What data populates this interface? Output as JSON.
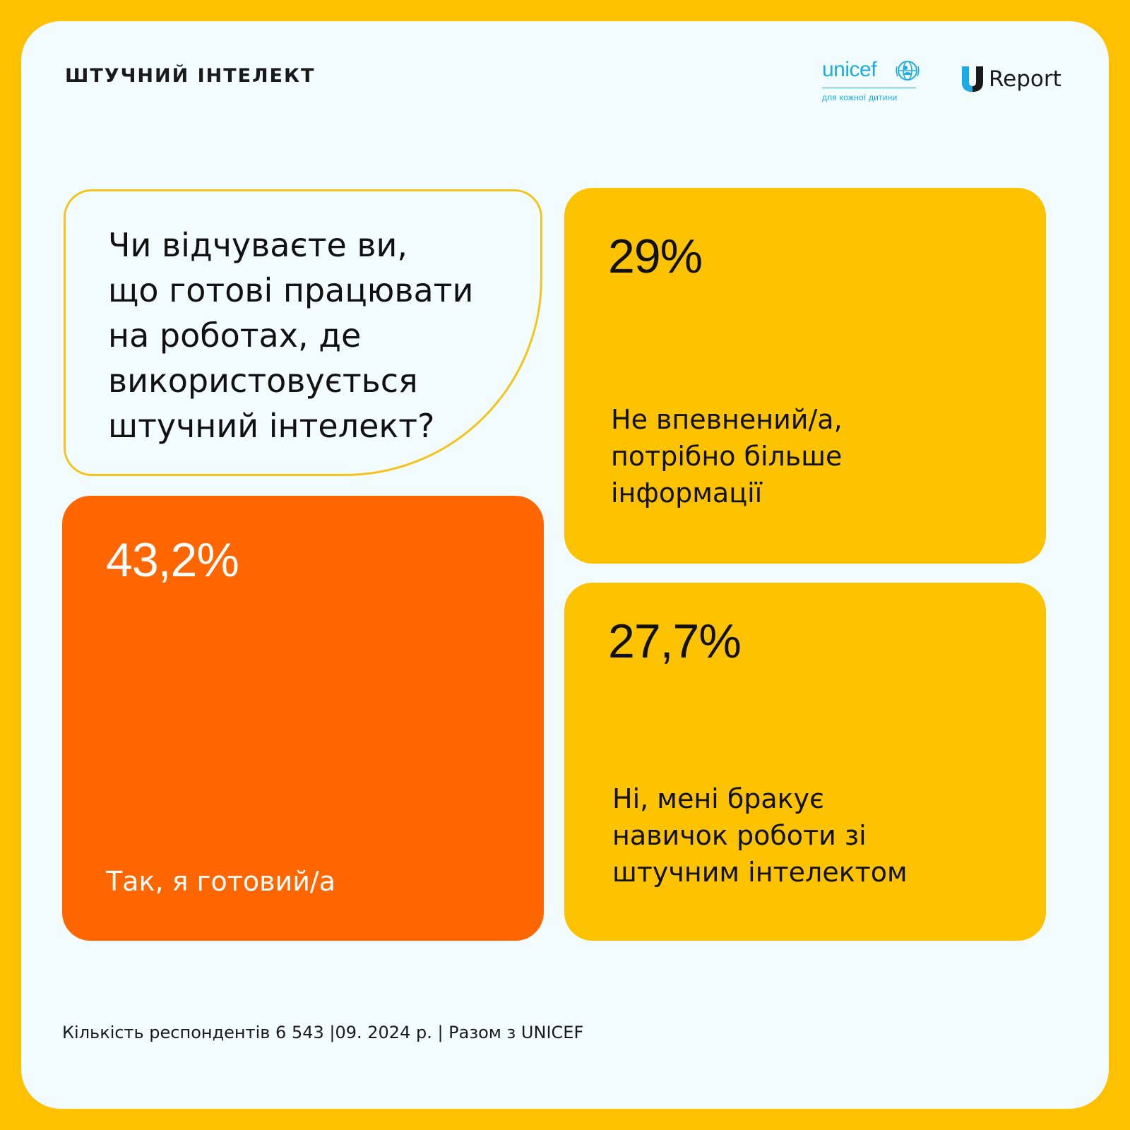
{
  "header": {
    "topic": "ШТУЧНИЙ ІНТЕЛЕКТ",
    "logos": {
      "unicef_word": "unicef",
      "unicef_tagline": "для кожної дитини",
      "ureport_text": "Report",
      "unicef_color": "#1CABE2"
    }
  },
  "question": {
    "lines": [
      "Чи відчуваєте ви,",
      "що готові працювати",
      "на роботах, де",
      "використовується",
      "штучний інтелект?"
    ]
  },
  "answers": [
    {
      "percent": "43,2%",
      "value": 43.2,
      "label_lines": [
        "Так, я готовий/а"
      ],
      "color": "#FF6600"
    },
    {
      "percent": "29%",
      "value": 29,
      "label_lines": [
        "Не впевнений/а,",
        "потрібно більше",
        "інформації"
      ],
      "color": "#FDC300"
    },
    {
      "percent": "27,7%",
      "value": 27.7,
      "label_lines": [
        "Ні, мені бракує",
        "навичок роботи зі",
        "штучним інтелектом"
      ],
      "color": "#FDC300"
    }
  ],
  "footer": {
    "text": "Кількість респондентів 6 543 |09. 2024 р. | Разом з UNICEF"
  },
  "theme": {
    "frame": "#FDC100",
    "background": "#F2FBFD",
    "accent_orange": "#FF6600",
    "accent_yellow": "#FDC300"
  }
}
